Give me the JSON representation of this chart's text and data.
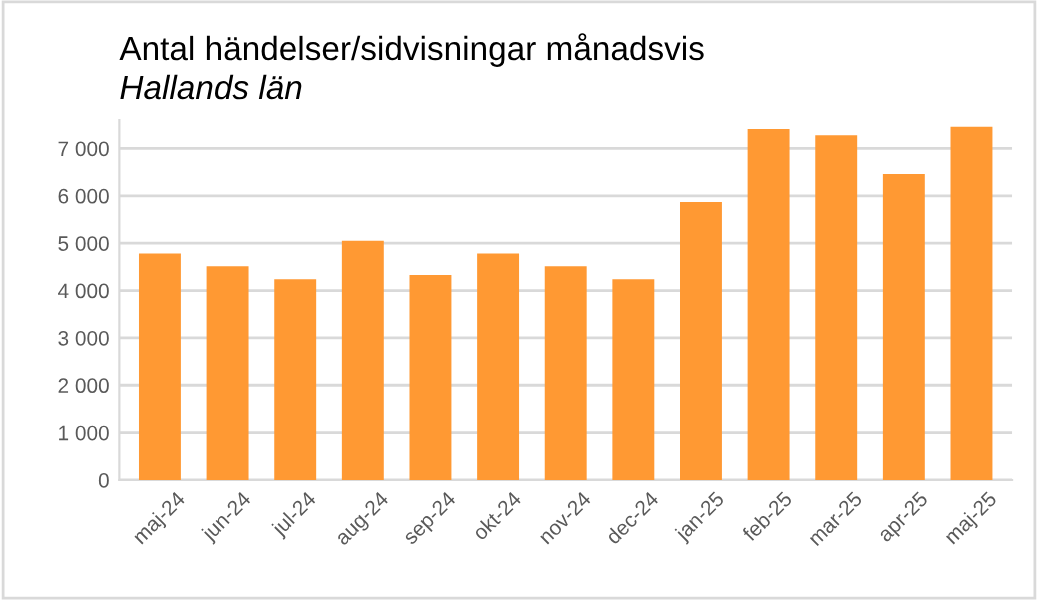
{
  "chart_data": {
    "type": "bar",
    "title": "Antal händelser/sidvisningar månadsvis",
    "subtitle": "Hallands län",
    "categories": [
      "maj-24",
      "jun-24",
      "jul-24",
      "aug-24",
      "sep-24",
      "okt-24",
      "nov-24",
      "dec-24",
      "jan-25",
      "feb-25",
      "mar-25",
      "apr-25",
      "maj-25"
    ],
    "values": [
      4780,
      4510,
      4240,
      5050,
      4330,
      4780,
      4510,
      4240,
      5870,
      7410,
      7280,
      6460,
      7460
    ],
    "color": "#ff9933",
    "ylim": [
      0,
      7600
    ],
    "yticks": [
      0,
      {
        "value": 1000,
        "label": "1 000"
      },
      {
        "value": 2000,
        "label": "2 000"
      },
      {
        "value": 3000,
        "label": "3 000"
      },
      {
        "value": 4000,
        "label": "4 000"
      },
      {
        "value": 5000,
        "label": "5 000"
      },
      {
        "value": 6000,
        "label": "6 000"
      },
      {
        "value": 7000,
        "label": "7 000"
      }
    ],
    "grid": "y",
    "legend": false
  }
}
